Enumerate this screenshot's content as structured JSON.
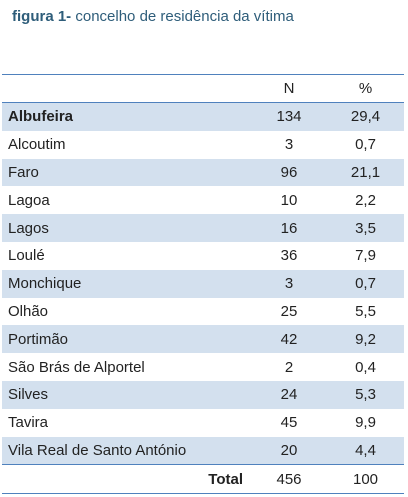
{
  "caption": {
    "lead": "figura 1-",
    "text": " concelho de residência da vítima"
  },
  "header": {
    "name": "",
    "n": "N",
    "pct": "%"
  },
  "rows": [
    {
      "name": "Albufeira",
      "n": "134",
      "pct": "29,4",
      "bold": true
    },
    {
      "name": "Alcoutim",
      "n": "3",
      "pct": "0,7"
    },
    {
      "name": "Faro",
      "n": "96",
      "pct": "21,1"
    },
    {
      "name": "Lagoa",
      "n": "10",
      "pct": "2,2"
    },
    {
      "name": "Lagos",
      "n": "16",
      "pct": "3,5"
    },
    {
      "name": "Loulé",
      "n": "36",
      "pct": "7,9"
    },
    {
      "name": "Monchique",
      "n": "3",
      "pct": "0,7"
    },
    {
      "name": "Olhão",
      "n": "25",
      "pct": "5,5"
    },
    {
      "name": "Portimão",
      "n": "42",
      "pct": "9,2"
    },
    {
      "name": "São Brás de Alportel",
      "n": "2",
      "pct": "0,4"
    },
    {
      "name": "Silves",
      "n": "24",
      "pct": "5,3"
    },
    {
      "name": "Tavira",
      "n": "45",
      "pct": "9,9"
    },
    {
      "name": "Vila Real de Santo António",
      "n": "20",
      "pct": "4,4"
    }
  ],
  "total": {
    "label": "Total",
    "n": "456",
    "pct": "100"
  },
  "colors": {
    "caption": "#2e5d7a",
    "border": "#4f81bd",
    "band": "#d3e0ee"
  }
}
